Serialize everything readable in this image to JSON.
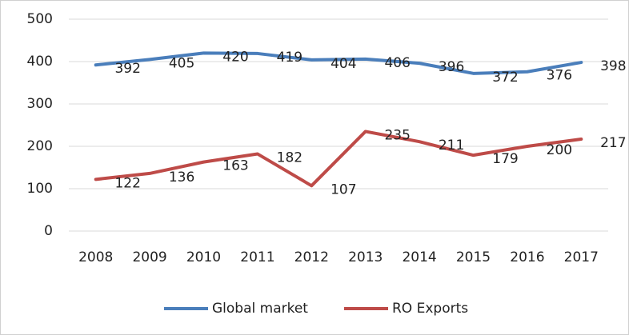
{
  "chart_data": {
    "type": "line",
    "categories": [
      "2008",
      "2009",
      "2010",
      "2011",
      "2012",
      "2013",
      "2014",
      "2015",
      "2016",
      "2017"
    ],
    "series": [
      {
        "name": "Global market",
        "color": "#4a7ebb",
        "values": [
          392,
          405,
          420,
          419,
          404,
          406,
          396,
          372,
          376,
          398
        ]
      },
      {
        "name": "RO Exports",
        "color": "#be4b48",
        "values": [
          122,
          136,
          163,
          182,
          107,
          235,
          211,
          179,
          200,
          217
        ]
      }
    ],
    "ylim": [
      0,
      500
    ],
    "yticks": [
      0,
      100,
      200,
      300,
      400,
      500
    ],
    "grid": true,
    "legend": "bottom"
  }
}
